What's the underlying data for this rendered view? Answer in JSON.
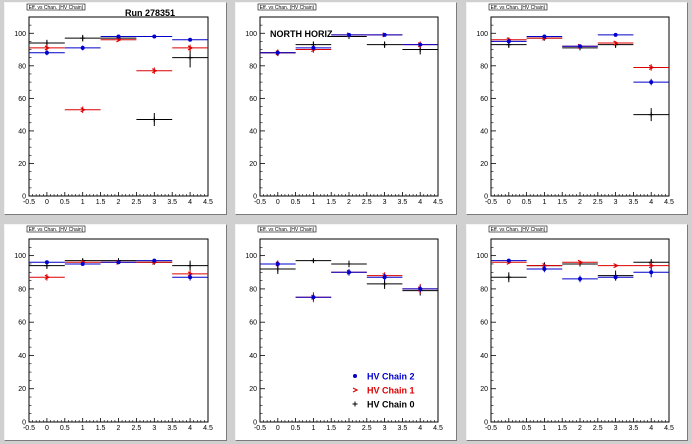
{
  "colors": {
    "chain2": "#0000cc",
    "chain1": "#dd0000",
    "chain0": "#000000"
  },
  "pad_title": "Eff. vs Chan. (HV Chain)",
  "annotations": {
    "run": "Run 278351",
    "region": "NORTH HORIZ"
  },
  "legend": {
    "entries": [
      {
        "label": "HV Chain 2",
        "marker": "dot",
        "color": "#0000cc"
      },
      {
        "label": "HV Chain 1",
        "marker": "arrow",
        "color": "#dd0000"
      },
      {
        "label": "HV Chain 0",
        "marker": "plus",
        "color": "#000000"
      }
    ]
  },
  "chart_data": [
    {
      "type": "scatter",
      "xlim": [
        -0.5,
        4.5
      ],
      "ylim": [
        0,
        110
      ],
      "xticks": [
        "-0.5",
        "0",
        "0.5",
        "1",
        "1.5",
        "2",
        "2.5",
        "3",
        "3.5",
        "4",
        "4.5"
      ],
      "yticks": [
        "0",
        "20",
        "40",
        "60",
        "80",
        "100"
      ],
      "series": [
        {
          "name": "HV Chain 2",
          "x": [
            0,
            1,
            2,
            3,
            4
          ],
          "y": [
            88,
            91,
            98,
            98,
            96
          ],
          "err": [
            1.5,
            1.5,
            1,
            1,
            1
          ]
        },
        {
          "name": "HV Chain 1",
          "x": [
            0,
            1,
            2,
            3,
            4
          ],
          "y": [
            91,
            53,
            96,
            77,
            91
          ],
          "err": [
            2,
            2,
            1,
            2,
            2
          ]
        },
        {
          "name": "HV Chain 0",
          "x": [
            0,
            1,
            2,
            3,
            4
          ],
          "y": [
            94,
            97,
            97,
            47,
            85
          ],
          "err": [
            2,
            2,
            1,
            4,
            6
          ]
        }
      ]
    },
    {
      "type": "scatter",
      "xlim": [
        -0.5,
        4.5
      ],
      "ylim": [
        0,
        110
      ],
      "xticks": [
        "-0.5",
        "0",
        "0.5",
        "1",
        "1.5",
        "2",
        "2.5",
        "3",
        "3.5",
        "4",
        "4.5"
      ],
      "yticks": [
        "0",
        "20",
        "40",
        "60",
        "80",
        "100"
      ],
      "series": [
        {
          "name": "HV Chain 2",
          "x": [
            0,
            1,
            2,
            3,
            4
          ],
          "y": [
            88,
            91,
            99,
            99,
            93
          ],
          "err": [
            1.5,
            1.5,
            1,
            1,
            1
          ]
        },
        {
          "name": "HV Chain 1",
          "x": [
            0,
            1,
            2,
            3,
            4
          ],
          "y": [
            88,
            90,
            99,
            99,
            93
          ],
          "err": [
            2,
            2,
            1,
            1,
            2
          ]
        },
        {
          "name": "HV Chain 0",
          "x": [
            0,
            1,
            2,
            3,
            4
          ],
          "y": [
            88,
            93,
            98,
            93,
            90
          ],
          "err": [
            2,
            2,
            1,
            2,
            3
          ]
        }
      ]
    },
    {
      "type": "scatter",
      "xlim": [
        -0.5,
        4.5
      ],
      "ylim": [
        0,
        110
      ],
      "xticks": [
        "-0.5",
        "0",
        "0.5",
        "1",
        "1.5",
        "2",
        "2.5",
        "3",
        "3.5",
        "4",
        "4.5"
      ],
      "yticks": [
        "0",
        "20",
        "40",
        "60",
        "80",
        "100"
      ],
      "series": [
        {
          "name": "HV Chain 2",
          "x": [
            0,
            1,
            2,
            3,
            4
          ],
          "y": [
            95,
            98,
            92,
            99,
            70
          ],
          "err": [
            1.5,
            1,
            1,
            1,
            2
          ]
        },
        {
          "name": "HV Chain 1",
          "x": [
            0,
            1,
            2,
            3,
            4
          ],
          "y": [
            96,
            97,
            92,
            94,
            79
          ],
          "err": [
            1.5,
            1,
            1,
            1,
            2
          ]
        },
        {
          "name": "HV Chain 0",
          "x": [
            0,
            1,
            2,
            3,
            4
          ],
          "y": [
            93,
            97,
            91,
            93,
            50
          ],
          "err": [
            2,
            1,
            1,
            2,
            4
          ]
        }
      ]
    },
    {
      "type": "scatter",
      "xlim": [
        -0.5,
        4.5
      ],
      "ylim": [
        0,
        110
      ],
      "xticks": [
        "-0.5",
        "0",
        "0.5",
        "1",
        "1.5",
        "2",
        "2.5",
        "3",
        "3.5",
        "4",
        "4.5"
      ],
      "yticks": [
        "0",
        "20",
        "40",
        "60",
        "80",
        "100"
      ],
      "series": [
        {
          "name": "HV Chain 2",
          "x": [
            0,
            1,
            2,
            3,
            4
          ],
          "y": [
            96,
            95,
            96,
            97,
            87
          ],
          "err": [
            1,
            1,
            1,
            1,
            2
          ]
        },
        {
          "name": "HV Chain 1",
          "x": [
            0,
            1,
            2,
            3,
            4
          ],
          "y": [
            87,
            96,
            96,
            96,
            89
          ],
          "err": [
            2,
            1,
            1,
            1,
            2
          ]
        },
        {
          "name": "HV Chain 0",
          "x": [
            0,
            1,
            2,
            3,
            4
          ],
          "y": [
            94,
            97,
            97,
            96,
            94
          ],
          "err": [
            2,
            1,
            1,
            1,
            3
          ]
        }
      ]
    },
    {
      "type": "scatter",
      "xlim": [
        -0.5,
        4.5
      ],
      "ylim": [
        0,
        110
      ],
      "xticks": [
        "-0.5",
        "0",
        "0.5",
        "1",
        "1.5",
        "2",
        "2.5",
        "3",
        "3.5",
        "4",
        "4.5"
      ],
      "yticks": [
        "0",
        "20",
        "40",
        "60",
        "80",
        "100"
      ],
      "series": [
        {
          "name": "HV Chain 2",
          "x": [
            0,
            1,
            2,
            3,
            4
          ],
          "y": [
            95,
            75,
            90,
            87,
            80
          ],
          "err": [
            2,
            2,
            2,
            2,
            2
          ]
        },
        {
          "name": "HV Chain 1",
          "x": [
            0,
            1,
            2,
            3,
            4
          ],
          "y": [
            95,
            75,
            90,
            88,
            80
          ],
          "err": [
            2,
            3,
            2,
            2,
            3
          ]
        },
        {
          "name": "HV Chain 0",
          "x": [
            0,
            1,
            2,
            3,
            4
          ],
          "y": [
            92,
            97,
            95,
            83,
            79
          ],
          "err": [
            3,
            1,
            2,
            3,
            3
          ]
        }
      ]
    },
    {
      "type": "scatter",
      "xlim": [
        -0.5,
        4.5
      ],
      "ylim": [
        0,
        110
      ],
      "xticks": [
        "-0.5",
        "0",
        "0.5",
        "1",
        "1.5",
        "2",
        "2.5",
        "3",
        "3.5",
        "4",
        "4.5"
      ],
      "yticks": [
        "0",
        "20",
        "40",
        "60",
        "80",
        "100"
      ],
      "series": [
        {
          "name": "HV Chain 2",
          "x": [
            0,
            1,
            2,
            3,
            4
          ],
          "y": [
            97,
            92,
            86,
            87,
            90
          ],
          "err": [
            1,
            2,
            2,
            2,
            3
          ]
        },
        {
          "name": "HV Chain 1",
          "x": [
            0,
            1,
            2,
            3,
            4
          ],
          "y": [
            96,
            94,
            96,
            94,
            94
          ],
          "err": [
            1,
            1,
            1,
            1,
            2
          ]
        },
        {
          "name": "HV Chain 0",
          "x": [
            0,
            1,
            2,
            3,
            4
          ],
          "y": [
            87,
            94,
            95,
            88,
            96
          ],
          "err": [
            3,
            2,
            1,
            3,
            2
          ]
        }
      ]
    }
  ]
}
